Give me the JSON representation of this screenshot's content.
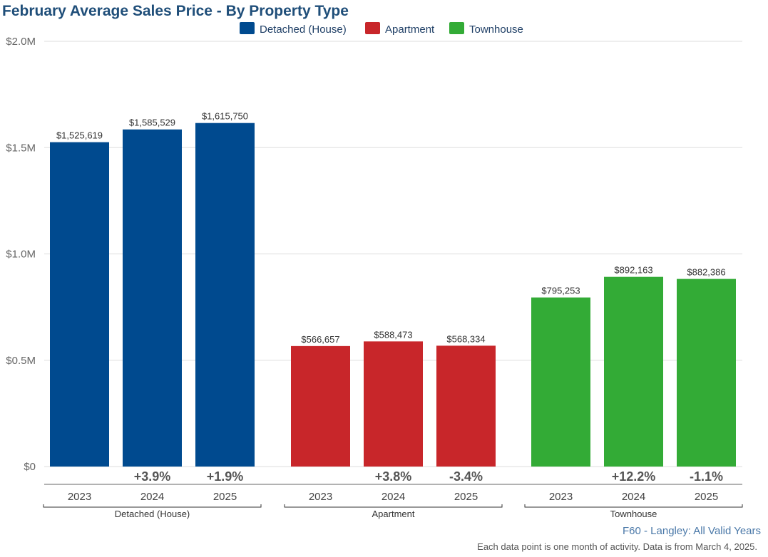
{
  "colors": {
    "title": "#1f4e79",
    "source": "#4a78a8",
    "grid": "#dddddd",
    "axis": "#666666"
  },
  "chart_data": {
    "type": "bar",
    "title": "February Average Sales Price - By Property Type",
    "xlabel": "",
    "ylabel": "",
    "ylim": [
      0,
      2000000
    ],
    "yticks": [
      {
        "value": 0,
        "label": "$0"
      },
      {
        "value": 500000,
        "label": "$0.5M"
      },
      {
        "value": 1000000,
        "label": "$1.0M"
      },
      {
        "value": 1500000,
        "label": "$1.5M"
      },
      {
        "value": 2000000,
        "label": "$2.0M"
      }
    ],
    "grid": true,
    "legend_position": "top-center",
    "legend": [
      {
        "label": "Detached (House)",
        "color": "#004a8f"
      },
      {
        "label": "Apartment",
        "color": "#c8262a"
      },
      {
        "label": "Townhouse",
        "color": "#33ab36"
      }
    ],
    "groups": [
      {
        "name": "Detached (House)",
        "color": "#004a8f",
        "bars": [
          {
            "year": "2023",
            "value": 1525619,
            "label": "$1,525,619",
            "change": ""
          },
          {
            "year": "2024",
            "value": 1585529,
            "label": "$1,585,529",
            "change": "+3.9%"
          },
          {
            "year": "2025",
            "value": 1615750,
            "label": "$1,615,750",
            "change": "+1.9%"
          }
        ]
      },
      {
        "name": "Apartment",
        "color": "#c8262a",
        "bars": [
          {
            "year": "2023",
            "value": 566657,
            "label": "$566,657",
            "change": ""
          },
          {
            "year": "2024",
            "value": 588473,
            "label": "$588,473",
            "change": "+3.8%"
          },
          {
            "year": "2025",
            "value": 568334,
            "label": "$568,334",
            "change": "-3.4%"
          }
        ]
      },
      {
        "name": "Townhouse",
        "color": "#33ab36",
        "bars": [
          {
            "year": "2023",
            "value": 795253,
            "label": "$795,253",
            "change": ""
          },
          {
            "year": "2024",
            "value": 892163,
            "label": "$892,163",
            "change": "+12.2%"
          },
          {
            "year": "2025",
            "value": 882386,
            "label": "$882,386",
            "change": "-1.1%"
          }
        ]
      }
    ]
  },
  "source_label": "F60 - Langley: All Valid Years",
  "footnote": "Each data point is one month of activity. Data is from March 4, 2025."
}
